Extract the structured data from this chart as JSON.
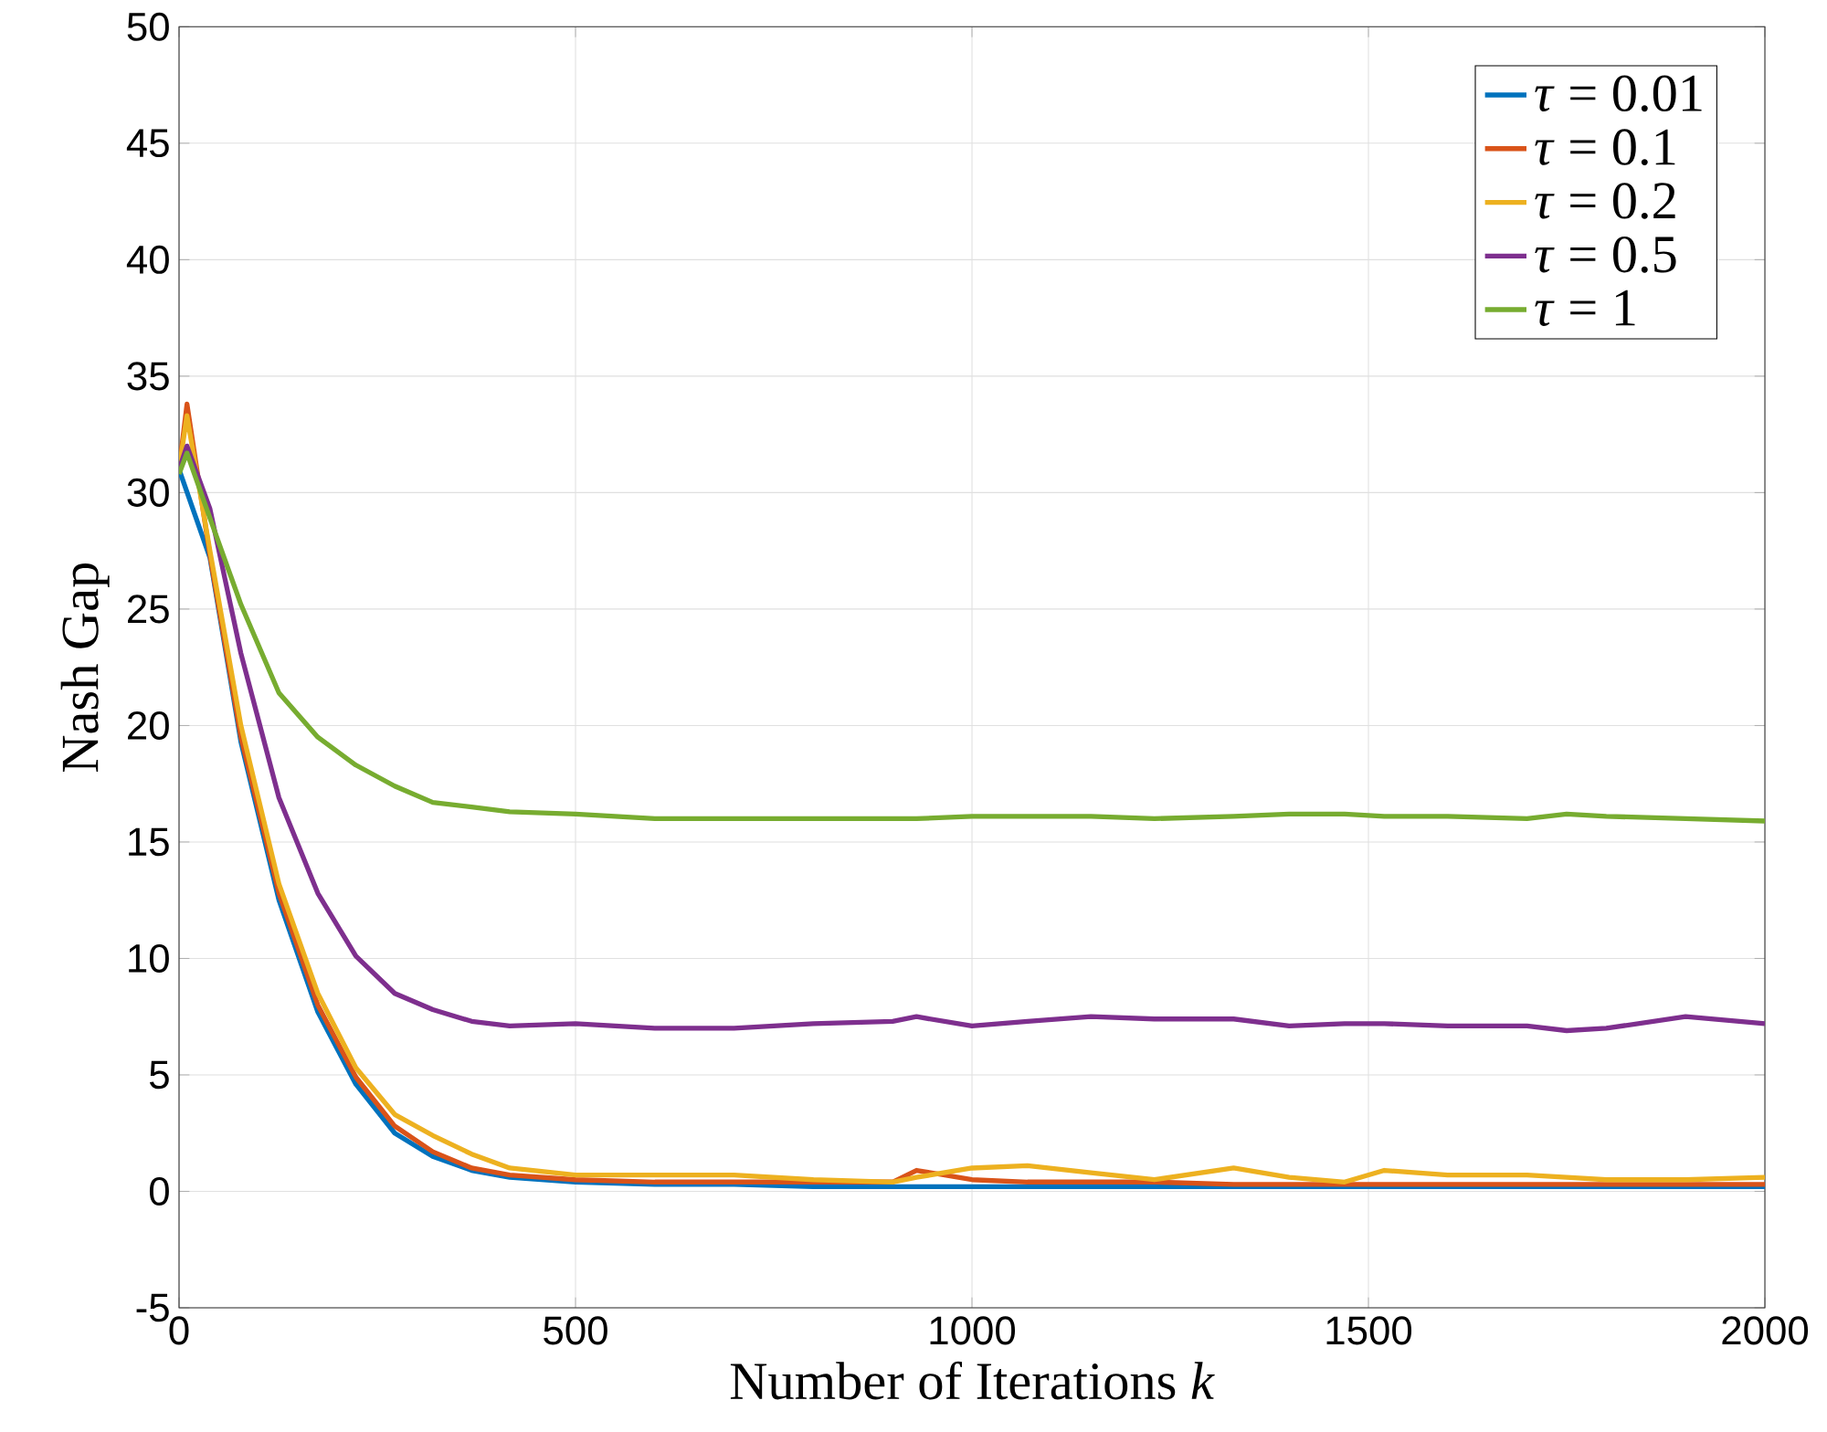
{
  "chart_data": {
    "type": "line",
    "xlabel": "Number of Iterations  *k*",
    "ylabel": "Nash Gap",
    "x": [
      0,
      10,
      39,
      78,
      126,
      175,
      223,
      272,
      320,
      369,
      417,
      500,
      600,
      700,
      800,
      900,
      930,
      1000,
      1070,
      1150,
      1230,
      1330,
      1400,
      1470,
      1520,
      1600,
      1700,
      1750,
      1800,
      1900,
      2000
    ],
    "series": [
      {
        "name": "*τ* = 0.01",
        "color": "#0072bd",
        "values": [
          31.0,
          null,
          27.2,
          19.3,
          12.5,
          7.7,
          4.6,
          2.5,
          1.5,
          0.9,
          0.6,
          0.4,
          0.3,
          0.3,
          0.2,
          0.2,
          0.2,
          0.2,
          0.2,
          0.2,
          0.2,
          0.2,
          0.2,
          0.2,
          0.2,
          0.2,
          0.2,
          0.2,
          0.2,
          0.2,
          0.2
        ]
      },
      {
        "name": "*τ* = 0.1",
        "color": "#d95319",
        "values": [
          31.0,
          33.8,
          27.3,
          19.5,
          12.8,
          8.0,
          4.9,
          2.8,
          1.7,
          1.0,
          0.7,
          0.5,
          0.4,
          0.4,
          0.4,
          0.4,
          0.9,
          0.5,
          0.4,
          0.4,
          0.4,
          0.3,
          0.3,
          0.3,
          0.3,
          0.3,
          0.3,
          0.3,
          0.3,
          0.3,
          0.3
        ]
      },
      {
        "name": "*τ* = 0.2",
        "color": "#edb120",
        "values": [
          31.0,
          33.3,
          27.5,
          20.0,
          13.2,
          8.5,
          5.3,
          3.3,
          2.4,
          1.6,
          1.0,
          0.7,
          0.7,
          0.7,
          0.5,
          0.4,
          0.6,
          1.0,
          1.1,
          0.8,
          0.5,
          1.0,
          0.6,
          0.4,
          0.9,
          0.7,
          0.7,
          0.6,
          0.5,
          0.5,
          0.6
        ]
      },
      {
        "name": "*τ* = 0.5",
        "color": "#7e2f8e",
        "values": [
          31.0,
          32.0,
          29.3,
          23.1,
          16.9,
          12.8,
          10.1,
          8.5,
          7.8,
          7.3,
          7.1,
          7.2,
          7.0,
          7.0,
          7.2,
          7.3,
          7.5,
          7.1,
          7.3,
          7.5,
          7.4,
          7.4,
          7.1,
          7.2,
          7.2,
          7.1,
          7.1,
          6.9,
          7.0,
          7.5,
          7.2
        ]
      },
      {
        "name": "*τ* = 1",
        "color": "#77ac30",
        "values": [
          30.8,
          31.7,
          28.9,
          25.2,
          21.4,
          19.5,
          18.3,
          17.4,
          16.7,
          16.5,
          16.3,
          16.2,
          16.0,
          16.0,
          16.0,
          16.0,
          16.0,
          16.1,
          16.1,
          16.1,
          16.0,
          16.1,
          16.2,
          16.2,
          16.1,
          16.1,
          16.0,
          16.2,
          16.1,
          16.0,
          15.9
        ]
      }
    ],
    "xlim": [
      0,
      2000
    ],
    "ylim": [
      -5,
      50
    ],
    "xticks": [
      0,
      500,
      1000,
      1500,
      2000
    ],
    "yticks": [
      -5,
      0,
      5,
      10,
      15,
      20,
      25,
      30,
      35,
      40,
      45,
      50
    ],
    "grid": true,
    "legend": "top right"
  }
}
